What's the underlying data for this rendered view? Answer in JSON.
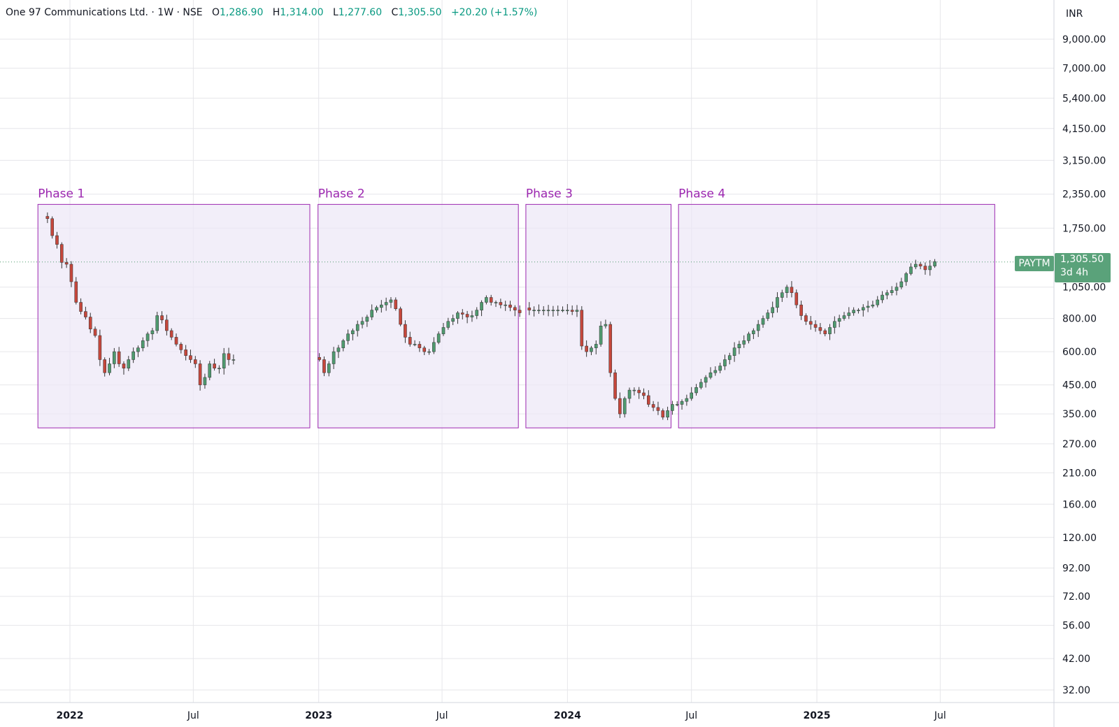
{
  "header": {
    "symbol_name": "One 97 Communications Ltd.",
    "interval": "1W",
    "exchange": "NSE",
    "open_label": "O",
    "open": "1,286.90",
    "high_label": "H",
    "high": "1,314.00",
    "low_label": "L",
    "low": "1,277.60",
    "close_label": "C",
    "close": "1,305.50",
    "change": "+20.20 (+1.57%)"
  },
  "currency": "INR",
  "price_tag": {
    "ticker": "PAYTM",
    "price": "1,305.50",
    "countdown": "3d 4h"
  },
  "colors": {
    "up": "#4f9a6f",
    "down": "#c5473c",
    "phase_stroke": "#9c27b0",
    "phase_fill": "#ede7f6",
    "grid": "#e6e6ea"
  },
  "chart_data": {
    "type": "candlestick",
    "y_scale": "log",
    "ylim": [
      29,
      11000
    ],
    "y_ticks": [
      "9,000.00",
      "7,000.00",
      "5,400.00",
      "4,150.00",
      "3,150.00",
      "2,350.00",
      "1,750.00",
      "1,050.00",
      "800.00",
      "600.00",
      "450.00",
      "350.00",
      "270.00",
      "210.00",
      "160.00",
      "120.00",
      "92.00",
      "72.00",
      "56.00",
      "42.00",
      "32.00"
    ],
    "y_tick_values": [
      9000,
      7000,
      5400,
      4150,
      3150,
      2350,
      1750,
      1050,
      800,
      600,
      450,
      350,
      270,
      210,
      160,
      120,
      92,
      72,
      56,
      42,
      32
    ],
    "x_ticks": [
      {
        "label": "2022",
        "date": "2022-01-01",
        "bold": true
      },
      {
        "label": "Jul",
        "date": "2022-07-01",
        "bold": false
      },
      {
        "label": "2023",
        "date": "2023-01-01",
        "bold": true
      },
      {
        "label": "Jul",
        "date": "2023-07-01",
        "bold": false
      },
      {
        "label": "2024",
        "date": "2024-01-01",
        "bold": true
      },
      {
        "label": "Jul",
        "date": "2024-07-01",
        "bold": false
      },
      {
        "label": "2025",
        "date": "2025-01-01",
        "bold": true
      },
      {
        "label": "Jul",
        "date": "2025-07-01",
        "bold": false
      }
    ],
    "last_price": 1305.5,
    "phases": [
      {
        "label": "Phase 1",
        "start": "2021-11-15",
        "end": "2022-12-19",
        "top": 2150,
        "bottom": 310
      },
      {
        "label": "Phase 2",
        "start": "2022-12-31",
        "end": "2023-10-21",
        "top": 2150,
        "bottom": 310
      },
      {
        "label": "Phase 3",
        "start": "2023-11-01",
        "end": "2024-06-01",
        "top": 2150,
        "bottom": 310
      },
      {
        "label": "Phase 4",
        "start": "2024-06-12",
        "end": "2025-09-19",
        "top": 2150,
        "bottom": 310
      }
    ],
    "weekly_closes": [
      {
        "start": "2021-11-29",
        "closes": [
          1900,
          1640,
          1520,
          1300,
          1280,
          1100,
          920,
          850,
          810,
          730,
          690,
          560,
          500,
          540,
          600,
          540,
          520,
          560,
          600,
          620,
          660,
          700,
          720,
          820,
          790,
          720,
          680,
          640,
          610,
          580,
          560,
          540,
          450,
          480,
          540,
          520,
          520,
          590,
          560,
          560
        ]
      },
      {
        "start": "2023-01-02",
        "closes": [
          560,
          500,
          540,
          600,
          620,
          660,
          700,
          720,
          760,
          780,
          810,
          860,
          880,
          900,
          920,
          940,
          870,
          760,
          680,
          640,
          640,
          620,
          600,
          600,
          650,
          700,
          740,
          780,
          800,
          840,
          830,
          810,
          820,
          860,
          920,
          960,
          920,
          920,
          900,
          900,
          880,
          860,
          840
        ]
      },
      {
        "start": "2023-11-06",
        "closes": [
          860,
          860,
          860,
          860,
          860,
          860,
          860,
          860,
          860,
          850,
          860,
          630,
          600,
          620,
          640,
          750,
          760,
          500,
          400,
          350,
          400,
          430,
          430,
          420,
          410,
          380,
          370,
          360,
          340,
          360,
          380,
          380,
          390,
          400,
          420,
          440,
          460,
          480,
          500,
          510,
          530,
          560,
          580,
          620,
          640,
          660,
          700,
          720,
          760,
          800,
          840,
          880,
          960,
          1000,
          1050,
          1000,
          900,
          820,
          780,
          760,
          740,
          720,
          700,
          740,
          780,
          800,
          820,
          840,
          860,
          860,
          880,
          890,
          900,
          940,
          980,
          1000,
          1020,
          1050,
          1100,
          1180,
          1250,
          1280,
          1260,
          1220,
          1260,
          1310
        ]
      }
    ]
  }
}
